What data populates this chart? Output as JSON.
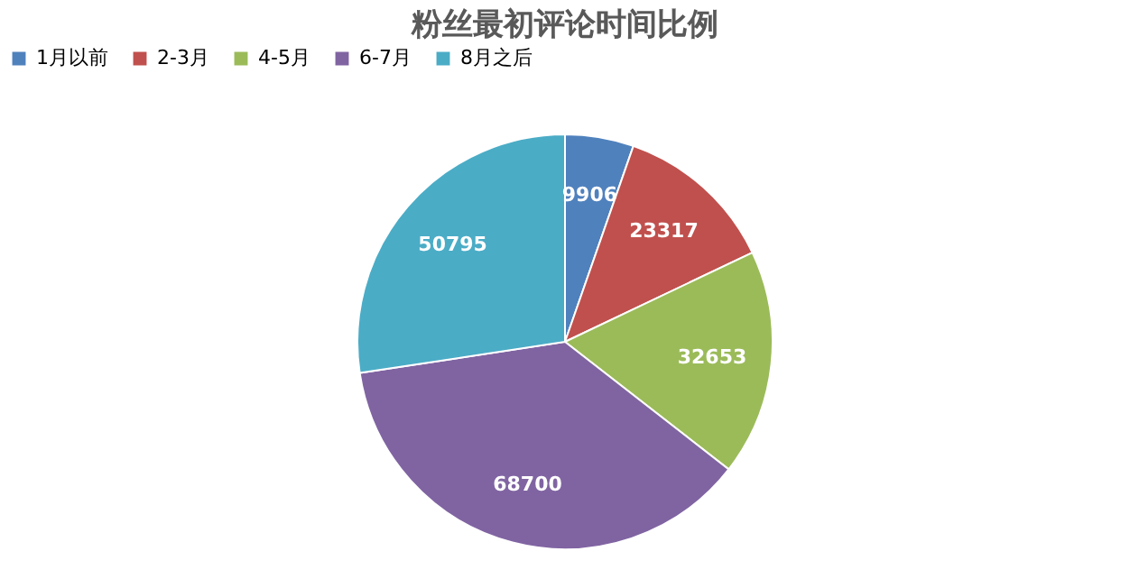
{
  "chart_data": {
    "type": "pie",
    "title": "粉丝最初评论时间比例",
    "categories": [
      "1月以前",
      "2-3月",
      "4-5月",
      "6-7月",
      "8月之后"
    ],
    "values": [
      9906,
      23317,
      32653,
      68700,
      50795
    ],
    "colors": [
      "#4f81bd",
      "#c0504d",
      "#9bbb59",
      "#8064a2",
      "#4bacc6"
    ],
    "data_labels": true,
    "legend": "top"
  }
}
